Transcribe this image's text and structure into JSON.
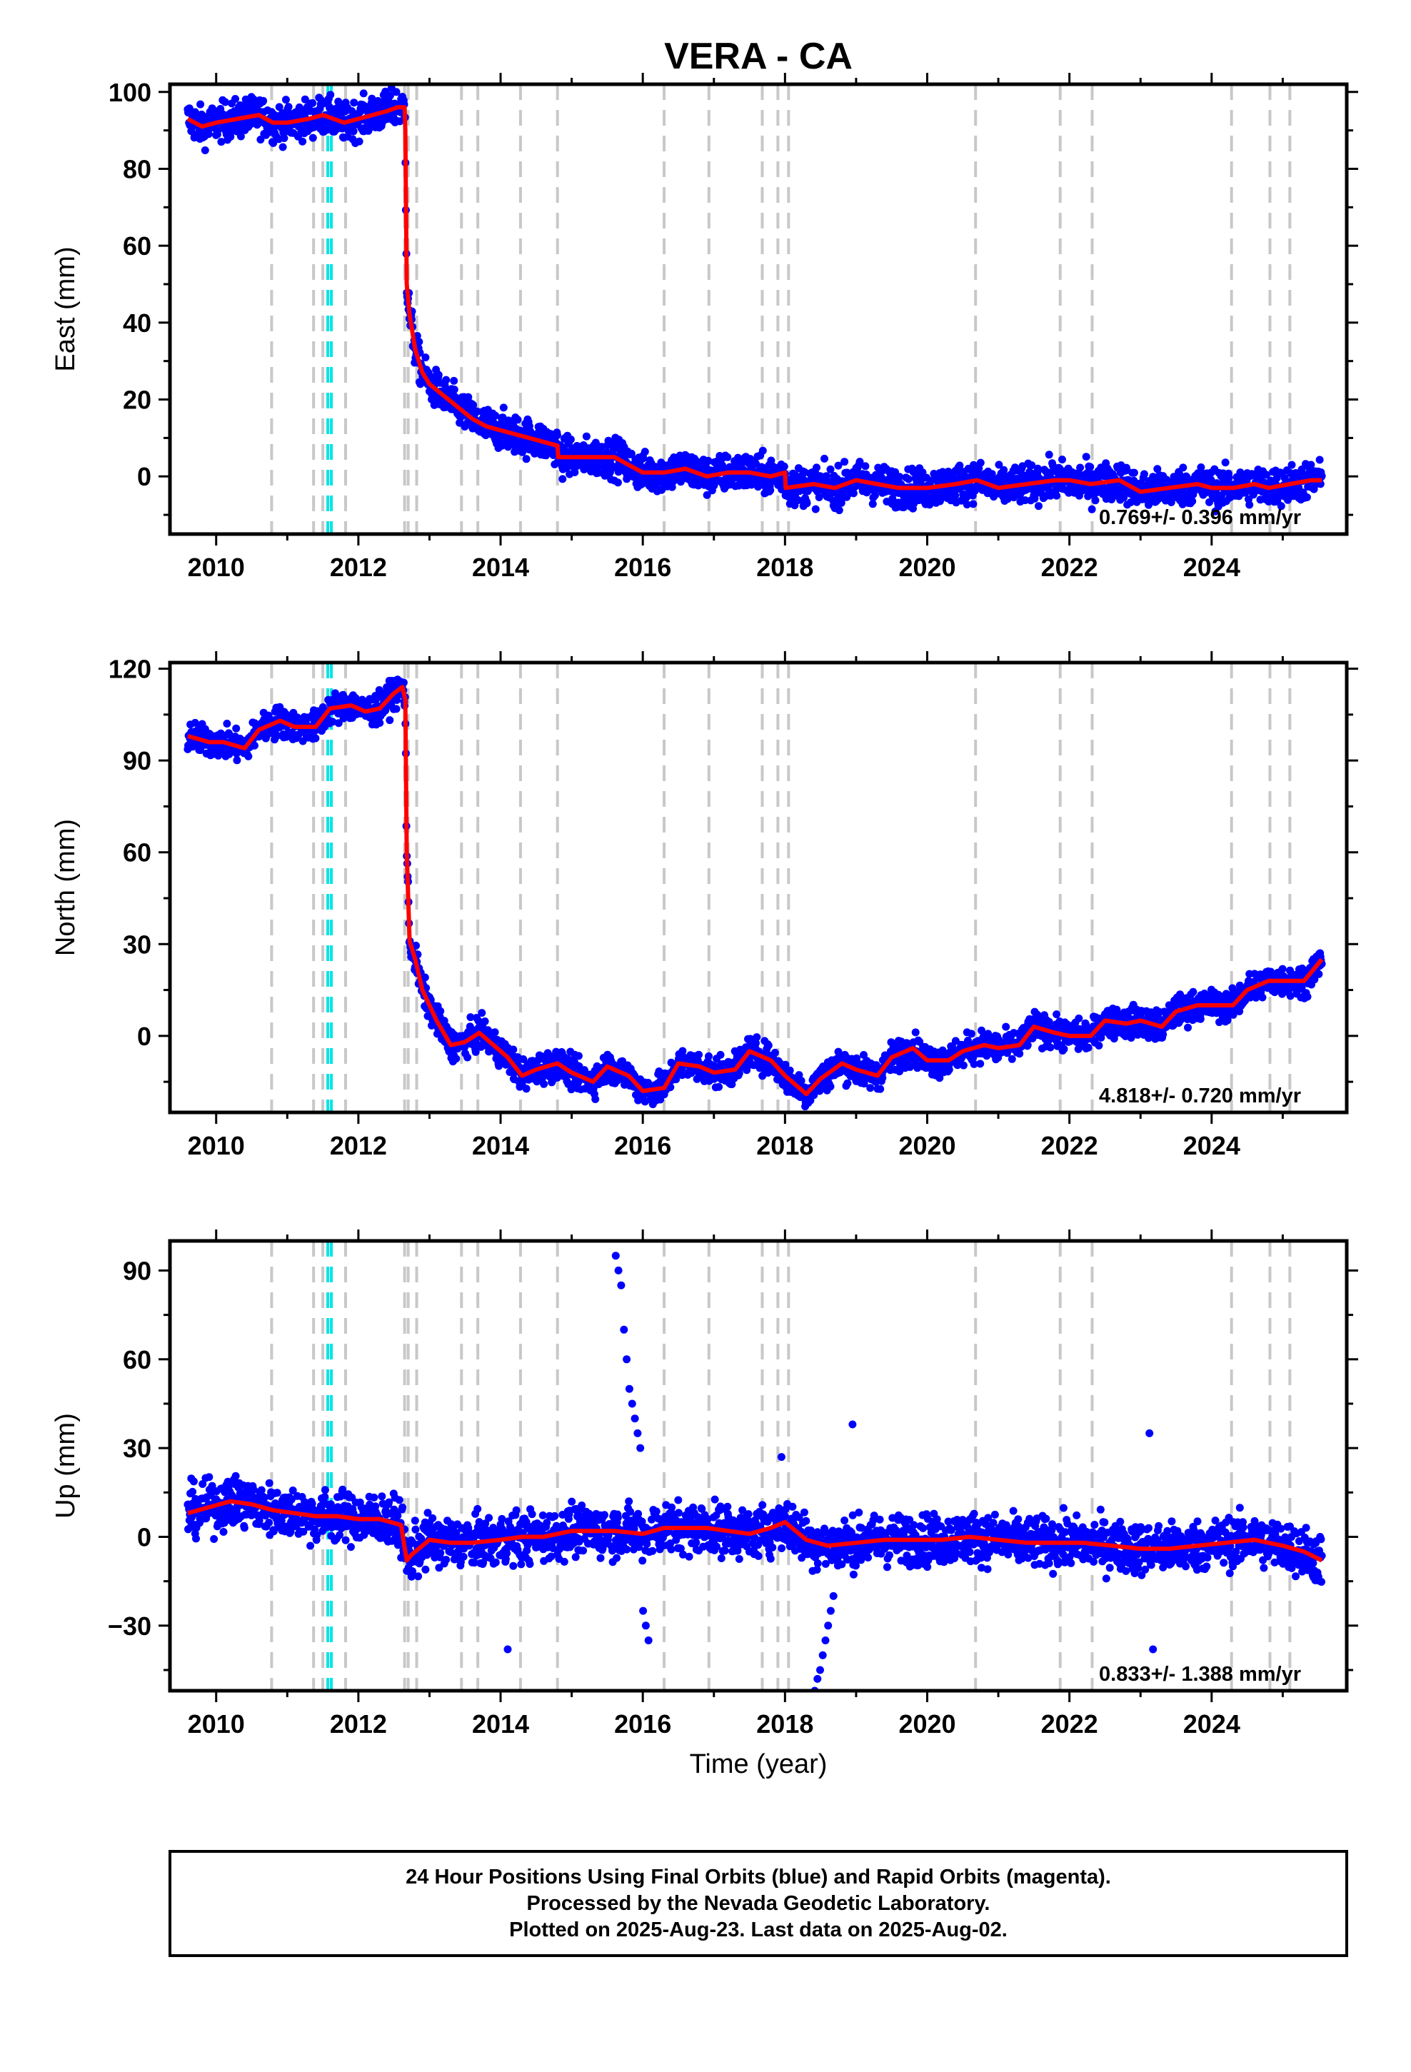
{
  "figure": {
    "title": "VERA - CA",
    "xlabel": "Time (year)",
    "footer_lines": [
      "24 Hour Positions Using Final Orbits (blue) and Rapid Orbits (magenta).",
      "Processed by the Nevada Geodetic Laboratory.",
      "Plotted on 2025-Aug-23. Last data on 2025-Aug-02."
    ],
    "colors": {
      "final_orbits": "#0000ff",
      "model": "#ff0000",
      "equipment_change": "#c8c8c8",
      "earthquake": "#00e5e5",
      "frame": "#000000"
    }
  },
  "chart_data": [
    {
      "type": "scatter",
      "ylabel": "East (mm)",
      "rate_text": "0.769+/- 0.396 mm/yr",
      "xlim": [
        2009.35,
        2025.9
      ],
      "ylim": [
        -15,
        102
      ],
      "xticks": [
        2010,
        2012,
        2014,
        2016,
        2018,
        2020,
        2022,
        2024
      ],
      "yticks": [
        0,
        20,
        40,
        60,
        80,
        100
      ],
      "event_lines_gray": [
        2010.78,
        2011.37,
        2011.5,
        2011.82,
        2012.65,
        2012.7,
        2012.82,
        2013.45,
        2013.68,
        2014.28,
        2014.8,
        2016.3,
        2016.93,
        2017.68,
        2017.9,
        2018.05,
        2020.68,
        2021.87,
        2022.32,
        2024.28,
        2024.82,
        2025.1
      ],
      "event_lines_cyan": [
        2011.57,
        2011.62
      ],
      "model_curve": {
        "x": [
          2009.6,
          2009.8,
          2010.0,
          2010.3,
          2010.6,
          2010.8,
          2011.0,
          2011.3,
          2011.5,
          2011.8,
          2012.0,
          2012.2,
          2012.4,
          2012.55,
          2012.65,
          2012.66,
          2012.68,
          2012.72,
          2012.8,
          2012.9,
          2013.0,
          2013.2,
          2013.4,
          2013.6,
          2013.8,
          2014.0,
          2014.2,
          2014.4,
          2014.6,
          2014.8,
          2014.81,
          2015.0,
          2015.3,
          2015.6,
          2015.8,
          2016.0,
          2016.3,
          2016.6,
          2016.9,
          2017.2,
          2017.5,
          2017.8,
          2018.0,
          2018.01,
          2018.4,
          2018.7,
          2019.0,
          2019.3,
          2019.6,
          2020.0,
          2020.4,
          2020.7,
          2021.0,
          2021.4,
          2021.8,
          2022.0,
          2022.3,
          2022.7,
          2023.0,
          2023.4,
          2023.8,
          2024.0,
          2024.3,
          2024.6,
          2024.8,
          2025.1,
          2025.4,
          2025.55
        ],
        "y": [
          93,
          91,
          92,
          93,
          94,
          92,
          92,
          93,
          94,
          92,
          93,
          94,
          95,
          96,
          96,
          90,
          50,
          42,
          33,
          27,
          24,
          21,
          18,
          15,
          13,
          12,
          11,
          10,
          9,
          8,
          5,
          5,
          5,
          5,
          3,
          1,
          1,
          2,
          0,
          1,
          1,
          0,
          1,
          -3,
          -2,
          -3,
          -1,
          -2,
          -3,
          -3,
          -2,
          -1,
          -3,
          -2,
          -1,
          -1,
          -2,
          -1,
          -4,
          -3,
          -2,
          -3,
          -3,
          -2,
          -3,
          -2,
          -1,
          -1
        ]
      },
      "scatter_noise_mm": 3.5
    },
    {
      "type": "scatter",
      "ylabel": "North (mm)",
      "rate_text": "4.818+/- 0.720 mm/yr",
      "xlim": [
        2009.35,
        2025.9
      ],
      "ylim": [
        -25,
        122
      ],
      "xticks": [
        2010,
        2012,
        2014,
        2016,
        2018,
        2020,
        2022,
        2024
      ],
      "yticks": [
        0,
        30,
        60,
        90,
        120
      ],
      "event_lines_gray": [
        2010.78,
        2011.37,
        2011.5,
        2011.82,
        2012.65,
        2012.7,
        2012.82,
        2013.45,
        2013.68,
        2014.28,
        2014.8,
        2016.3,
        2016.93,
        2017.68,
        2017.9,
        2018.05,
        2020.68,
        2021.87,
        2022.32,
        2024.28,
        2024.82,
        2025.1
      ],
      "event_lines_cyan": [
        2011.57,
        2011.62
      ],
      "model_curve": {
        "x": [
          2009.6,
          2009.9,
          2010.1,
          2010.4,
          2010.6,
          2010.9,
          2011.1,
          2011.4,
          2011.6,
          2011.9,
          2012.1,
          2012.3,
          2012.5,
          2012.62,
          2012.66,
          2012.68,
          2012.72,
          2012.8,
          2012.9,
          2013.1,
          2013.3,
          2013.5,
          2013.7,
          2013.9,
          2014.1,
          2014.3,
          2014.5,
          2014.8,
          2015.0,
          2015.3,
          2015.5,
          2015.8,
          2016.0,
          2016.3,
          2016.5,
          2016.8,
          2017.0,
          2017.3,
          2017.5,
          2017.8,
          2018.0,
          2018.3,
          2018.5,
          2018.8,
          2019.0,
          2019.3,
          2019.5,
          2019.8,
          2020.0,
          2020.3,
          2020.5,
          2020.8,
          2021.0,
          2021.3,
          2021.5,
          2021.8,
          2022.0,
          2022.3,
          2022.5,
          2022.8,
          2023.0,
          2023.3,
          2023.5,
          2023.8,
          2024.0,
          2024.3,
          2024.5,
          2024.8,
          2025.0,
          2025.3,
          2025.55
        ],
        "y": [
          98,
          96,
          96,
          94,
          100,
          103,
          101,
          101,
          107,
          108,
          106,
          107,
          112,
          114,
          110,
          60,
          31,
          25,
          15,
          5,
          -3,
          -2,
          1,
          -3,
          -7,
          -13,
          -11,
          -9,
          -12,
          -15,
          -10,
          -13,
          -18,
          -17,
          -9,
          -10,
          -12,
          -11,
          -5,
          -8,
          -13,
          -19,
          -14,
          -9,
          -11,
          -13,
          -7,
          -4,
          -8,
          -8,
          -5,
          -3,
          -4,
          -3,
          3,
          1,
          0,
          0,
          5,
          4,
          5,
          3,
          8,
          10,
          10,
          10,
          15,
          18,
          18,
          18,
          25
        ]
      },
      "scatter_noise_mm": 3.5
    },
    {
      "type": "scatter",
      "ylabel": "Up (mm)",
      "rate_text": "0.833+/- 1.388 mm/yr",
      "xlim": [
        2009.35,
        2025.9
      ],
      "ylim": [
        -52,
        100
      ],
      "xticks": [
        2010,
        2012,
        2014,
        2016,
        2018,
        2020,
        2022,
        2024
      ],
      "yticks": [
        -30,
        0,
        30,
        60,
        90
      ],
      "event_lines_gray": [
        2010.78,
        2011.37,
        2011.5,
        2011.82,
        2012.65,
        2012.7,
        2012.82,
        2013.45,
        2013.68,
        2014.28,
        2014.8,
        2016.3,
        2016.93,
        2017.68,
        2017.9,
        2018.05,
        2020.68,
        2021.87,
        2022.32,
        2024.28,
        2024.82,
        2025.1
      ],
      "event_lines_cyan": [
        2011.57,
        2011.62
      ],
      "model_curve": {
        "x": [
          2009.6,
          2009.9,
          2010.2,
          2010.5,
          2010.8,
          2011.1,
          2011.4,
          2011.7,
          2012.0,
          2012.3,
          2012.6,
          2012.68,
          2012.75,
          2013.0,
          2013.3,
          2013.6,
          2014.0,
          2014.3,
          2014.6,
          2015.0,
          2015.3,
          2015.6,
          2016.0,
          2016.3,
          2016.6,
          2016.9,
          2017.2,
          2017.5,
          2017.8,
          2018.0,
          2018.3,
          2018.6,
          2019.0,
          2019.4,
          2019.8,
          2020.2,
          2020.6,
          2021.0,
          2021.4,
          2021.8,
          2022.2,
          2022.6,
          2023.0,
          2023.4,
          2023.8,
          2024.2,
          2024.6,
          2025.0,
          2025.3,
          2025.55
        ],
        "y": [
          8,
          10,
          12,
          11,
          9,
          8,
          7,
          7,
          6,
          6,
          4,
          -8,
          -6,
          -1,
          -2,
          -2,
          -1,
          0,
          0,
          2,
          2,
          2,
          1,
          3,
          3,
          3,
          2,
          1,
          3,
          5,
          -1,
          -3,
          -2,
          -1,
          -1,
          -1,
          0,
          -1,
          -2,
          -2,
          -2,
          -3,
          -4,
          -4,
          -3,
          -2,
          -1,
          -3,
          -5,
          -8
        ]
      },
      "scatter_noise_mm": 6,
      "outlier_bursts": [
        {
          "x_range": [
            2015.6,
            2016.1
          ],
          "y_values": [
            95,
            90,
            85,
            70,
            60,
            50,
            45,
            40,
            35,
            30,
            -25,
            -30,
            -35
          ]
        },
        {
          "x_range": [
            2018.4,
            2018.7
          ],
          "y_values": [
            -52,
            -48,
            -45,
            -40,
            -35,
            -30,
            -25,
            -20
          ]
        },
        {
          "x_range": [
            2018.9,
            2019.0
          ],
          "y_values": [
            38
          ]
        },
        {
          "x_range": [
            2023.1,
            2023.2
          ],
          "y_values": [
            35,
            -38
          ]
        },
        {
          "x_range": [
            2014.0,
            2014.2
          ],
          "y_values": [
            -38
          ]
        },
        {
          "x_range": [
            2017.9,
            2018.0
          ],
          "y_values": [
            27
          ]
        }
      ]
    }
  ]
}
